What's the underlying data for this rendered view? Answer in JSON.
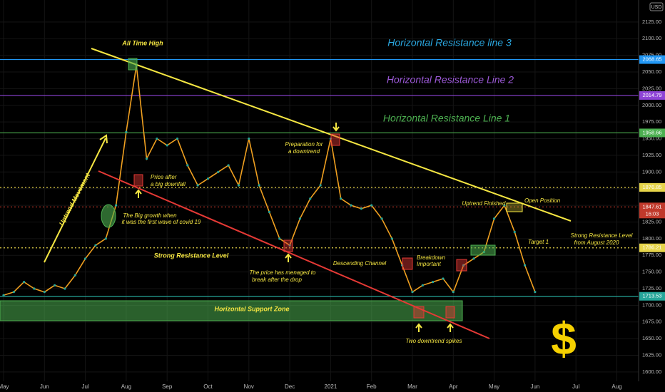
{
  "chart_data": {
    "type": "line",
    "categories": [
      "May",
      null,
      null,
      null,
      "Jun",
      null,
      null,
      null,
      "Jul",
      null,
      null,
      null,
      "Aug",
      null,
      null,
      null,
      "Sep",
      null,
      null,
      null,
      "Oct",
      null,
      null,
      null,
      "Nov",
      null,
      null,
      null,
      "Dec",
      null,
      null,
      null,
      "2021",
      null,
      null,
      null,
      "Feb",
      null,
      null,
      null,
      "Mar",
      null,
      null,
      null,
      "Apr",
      null,
      null,
      null,
      "May",
      null,
      null,
      null,
      "Jun",
      null,
      null,
      null,
      "Jul",
      null,
      null,
      null,
      "Aug"
    ],
    "values": [
      1715,
      1720,
      1735,
      1725,
      1720,
      1730,
      1725,
      1745,
      1770,
      1790,
      1800,
      1850,
      1960,
      2060,
      1920,
      1950,
      1940,
      1950,
      1910,
      1880,
      1890,
      1900,
      1910,
      1880,
      1950,
      1880,
      1840,
      1800,
      1790,
      1830,
      1860,
      1880,
      1950,
      1860,
      1850,
      1845,
      1850,
      1830,
      1800,
      1760,
      1720,
      1730,
      1735,
      1740,
      1720,
      1760,
      1770,
      1780,
      1830,
      1850,
      1810,
      1760,
      1720,
      null,
      null,
      null,
      null,
      null,
      null,
      null,
      null
    ],
    "color": "#f0a020",
    "ylim": [
      1586,
      2158
    ],
    "yticks": [
      {
        "value": 1600,
        "label": "1600.00"
      },
      {
        "value": 1625,
        "label": "1625.00"
      },
      {
        "value": 1650,
        "label": "1650.00"
      },
      {
        "value": 1675,
        "label": "1675.00"
      },
      {
        "value": 1700,
        "label": "1700.00"
      },
      {
        "value": 1725,
        "label": "1725.00"
      },
      {
        "value": 1750,
        "label": "1750.00"
      },
      {
        "value": 1775,
        "label": "1775.00"
      },
      {
        "value": 1800,
        "label": "1800.00"
      },
      {
        "value": 1825,
        "label": "1825.00"
      },
      {
        "value": 1850,
        "label": "1850.00"
      },
      {
        "value": 1875,
        "label": "1875.00"
      },
      {
        "value": 1900,
        "label": "1900.00"
      },
      {
        "value": 1925,
        "label": "1925.00"
      },
      {
        "value": 1950,
        "label": "1950.00"
      },
      {
        "value": 1975,
        "label": "1975.00"
      },
      {
        "value": 2000,
        "label": "2000.00"
      },
      {
        "value": 2025,
        "label": "2025.00"
      },
      {
        "value": 2050,
        "label": "2050.00"
      },
      {
        "value": 2075,
        "label": "2075.00"
      },
      {
        "value": 2100,
        "label": "2100.00"
      },
      {
        "value": 2125,
        "label": "2125.00"
      }
    ],
    "currency": "USD",
    "levels": [
      {
        "value": 2068.65,
        "color": "#2196f3",
        "style": "solid"
      },
      {
        "value": 2014.79,
        "color": "#8e44d6",
        "style": "solid"
      },
      {
        "value": 1958.66,
        "color": "#4caf50",
        "style": "solid"
      },
      {
        "value": 1876.85,
        "color": "#e6d44a",
        "style": "dotted"
      },
      {
        "value": 1847.61,
        "color": "#c0392b",
        "style": "dotted"
      },
      {
        "value": 1786.21,
        "color": "#e6d44a",
        "style": "dotted"
      },
      {
        "value": 1713.53,
        "color": "#26a69a",
        "style": "solid"
      }
    ],
    "countdown": "16:03",
    "annotations": [
      "All Time High",
      "Horizontal Resistance line 3",
      "Horizontal Resistance Line 2",
      "Horizontal Resistance Line 1",
      "Preparation for",
      "a downtrend",
      "Price after",
      "a big downfall",
      "Uptrend Movement",
      "The Big growth when",
      "it was the first wave of covid 19",
      "Strong Resistance Level",
      "The price has menaged to",
      "break after the drop",
      "Descending Channel",
      "Breakdown",
      "Important",
      "Uptrend Finished",
      "Open Position",
      "Target 1",
      "Strong Resistance Level",
      "from August 2020",
      "Horizontal Support Zone",
      "Two downtrend spikes",
      "$"
    ]
  }
}
